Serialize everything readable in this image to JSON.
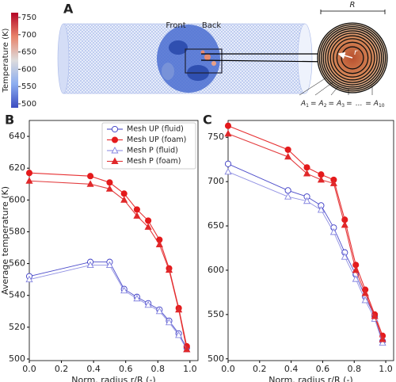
{
  "panel_a": {
    "panel": "A",
    "colorbar": {
      "title": "Temperature (K)",
      "ticks": [
        500,
        550,
        600,
        650,
        700,
        750
      ]
    },
    "front_label": "Front",
    "back_label": "Back",
    "radius_label": "R",
    "target_label": "r",
    "equation": {
      "terms": [
        {
          "base": "A",
          "sub": "1"
        },
        {
          "base": "A",
          "sub": "2"
        },
        {
          "base": "A",
          "sub": "3"
        },
        {
          "base": "A",
          "sub": "10"
        }
      ],
      "equals": "=",
      "ellipsis": "..."
    }
  },
  "chart_data": [
    {
      "type": "line",
      "panel": "B",
      "xlabel": "Norm. radius r/R (-)",
      "ylabel": "Average temperature (K)",
      "x": [
        0.0,
        0.38,
        0.5,
        0.59,
        0.67,
        0.74,
        0.81,
        0.87,
        0.93,
        0.98
      ],
      "series": [
        {
          "name": "Mesh UP (fluid)",
          "color": "#3a3ac4",
          "marker": "circle",
          "filled": false,
          "values": [
            552,
            561,
            561,
            544,
            539,
            535,
            531,
            524,
            516,
            507
          ]
        },
        {
          "name": "Mesh UP (foam)",
          "color": "#e41a1c",
          "marker": "circle",
          "filled": true,
          "values": [
            617,
            615,
            611,
            604,
            594,
            587,
            575,
            557,
            532,
            508
          ]
        },
        {
          "name": "Mesh P (fluid)",
          "color": "#8484e0",
          "marker": "triangle",
          "filled": false,
          "values": [
            550,
            559,
            559,
            543,
            538,
            534,
            530,
            523,
            515,
            506
          ]
        },
        {
          "name": "Mesh P (foam)",
          "color": "#e0282a",
          "marker": "triangle",
          "filled": true,
          "values": [
            612,
            610,
            607,
            600,
            590,
            583,
            572,
            556,
            531,
            506
          ]
        }
      ],
      "xlim": [
        0,
        1.05
      ],
      "xticks": [
        {
          "value": 0,
          "label": "0.0"
        },
        {
          "value": 0.2,
          "label": "0.2"
        },
        {
          "value": 0.4,
          "label": "0.4"
        },
        {
          "value": 0.6,
          "label": "0.6"
        },
        {
          "value": 0.8,
          "label": "0.8"
        },
        {
          "value": 1,
          "label": "1.0"
        }
      ],
      "ylim": [
        499,
        650
      ],
      "yticks": [
        500,
        520,
        540,
        560,
        580,
        600,
        620,
        640
      ],
      "legend": "upper right"
    },
    {
      "type": "line",
      "panel": "C",
      "xlabel": "Norm. radius r/R (-)",
      "x": [
        0.0,
        0.38,
        0.5,
        0.59,
        0.67,
        0.74,
        0.81,
        0.87,
        0.93,
        0.98
      ],
      "series": [
        {
          "color": "#3a3ac4",
          "marker": "circle",
          "filled": false,
          "values": [
            720,
            690,
            683,
            673,
            648,
            620,
            595,
            570,
            548,
            520
          ]
        },
        {
          "color": "#e41a1c",
          "marker": "circle",
          "filled": true,
          "values": [
            763,
            736,
            716,
            708,
            702,
            657,
            606,
            578,
            550,
            526
          ]
        },
        {
          "color": "#8484e0",
          "marker": "triangle",
          "filled": false,
          "values": [
            711,
            683,
            678,
            668,
            643,
            615,
            590,
            566,
            545,
            518
          ]
        },
        {
          "color": "#e0282a",
          "marker": "triangle",
          "filled": true,
          "values": [
            754,
            728,
            709,
            702,
            698,
            651,
            600,
            574,
            548,
            522
          ]
        }
      ],
      "xlim": [
        0,
        1.05
      ],
      "xticks": [
        {
          "value": 0,
          "label": "0.0"
        },
        {
          "value": 0.2,
          "label": "0.2"
        },
        {
          "value": 0.4,
          "label": "0.4"
        },
        {
          "value": 0.6,
          "label": "0.6"
        },
        {
          "value": 0.8,
          "label": "0.8"
        },
        {
          "value": 1,
          "label": "1.0"
        }
      ],
      "ylim": [
        498,
        769
      ],
      "yticks": [
        500,
        550,
        600,
        650,
        700,
        750
      ]
    }
  ]
}
